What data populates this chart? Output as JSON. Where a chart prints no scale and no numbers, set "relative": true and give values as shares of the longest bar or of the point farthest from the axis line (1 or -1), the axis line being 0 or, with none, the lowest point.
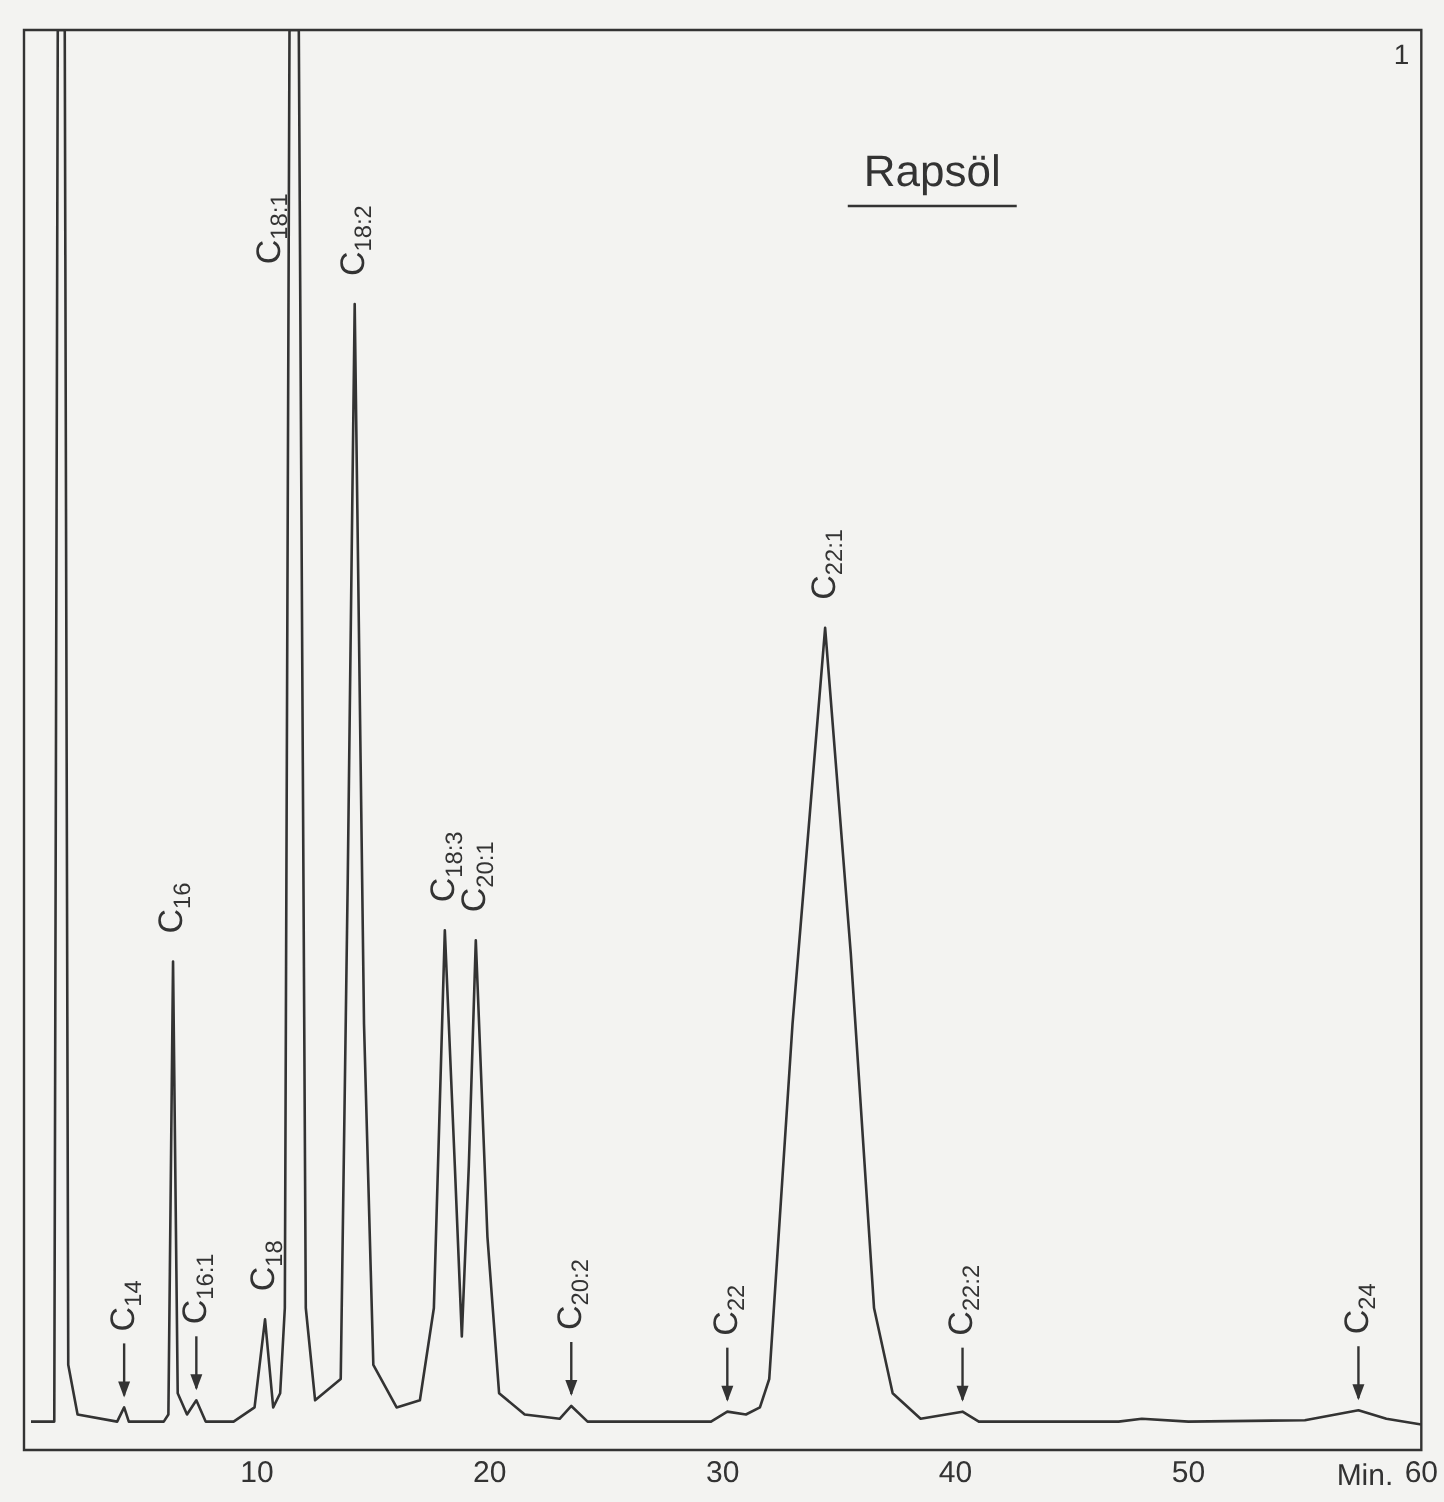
{
  "chart_data": {
    "type": "line",
    "title": "Rapsöl",
    "xlabel": "Min.",
    "relative": true,
    "xlim": [
      0,
      60
    ],
    "xticks": [
      10,
      20,
      30,
      40,
      50,
      60
    ],
    "grid": false,
    "legend": false,
    "marker": "none",
    "line_style": "solid",
    "series": [
      {
        "color": "#333333",
        "x": [
          0.3,
          1.3,
          1.45,
          1.75,
          1.9,
          2.3,
          4.0,
          4.3,
          4.5,
          6.0,
          6.2,
          6.4,
          6.6,
          7.0,
          7.4,
          7.8,
          9.0,
          9.9,
          10.35,
          10.7,
          11.0,
          11.2,
          11.4,
          11.8,
          12.1,
          12.5,
          13.6,
          13.9,
          14.2,
          14.6,
          15.0,
          16.0,
          17.0,
          17.6,
          18.07,
          18.5,
          18.8,
          19.1,
          19.4,
          19.9,
          20.4,
          21.5,
          23.0,
          23.5,
          24.2,
          29.5,
          30.2,
          31.0,
          31.6,
          32.0,
          33.0,
          34.4,
          35.5,
          36.5,
          37.3,
          38.5,
          40.3,
          41.0,
          47.0,
          48.0,
          50.0,
          55.0,
          57.3,
          58.5,
          60.0
        ],
        "values": [
          0.02,
          0.02,
          1.0,
          1.0,
          0.06,
          0.025,
          0.02,
          0.03,
          0.02,
          0.02,
          0.025,
          0.344,
          0.04,
          0.025,
          0.035,
          0.02,
          0.02,
          0.03,
          0.092,
          0.03,
          0.04,
          0.1,
          1.0,
          1.0,
          0.1,
          0.035,
          0.05,
          0.4,
          0.807,
          0.3,
          0.06,
          0.03,
          0.035,
          0.1,
          0.366,
          0.2,
          0.08,
          0.2,
          0.359,
          0.15,
          0.04,
          0.025,
          0.022,
          0.031,
          0.02,
          0.02,
          0.027,
          0.025,
          0.03,
          0.05,
          0.3,
          0.579,
          0.35,
          0.1,
          0.04,
          0.022,
          0.027,
          0.02,
          0.02,
          0.022,
          0.02,
          0.021,
          0.028,
          0.022,
          0.018
        ]
      }
    ],
    "annotations": [
      "1",
      {
        "text": "C$_{14}$",
        "x": 4.3,
        "y": 0.03
      },
      {
        "text": "C$_{16}$",
        "x": 6.4,
        "y": 0.344
      },
      {
        "text": "C$_{16:1}$",
        "x": 7.4,
        "y": 0.035
      },
      {
        "text": "C$_{18}$",
        "x": 10.35,
        "y": 0.092
      },
      {
        "text": "C$_{18:1}$",
        "x": 11.6,
        "y": 0.86
      },
      {
        "text": "C$_{18:2}$",
        "x": 14.2,
        "y": 0.807
      },
      {
        "text": "C$_{18:3}$",
        "x": 18.07,
        "y": 0.366
      },
      {
        "text": "C$_{20:1}$",
        "x": 19.4,
        "y": 0.359
      },
      {
        "text": "C$_{20:2}$",
        "x": 23.5,
        "y": 0.031
      },
      {
        "text": "C$_{22}$",
        "x": 30.2,
        "y": 0.027
      },
      {
        "text": "C$_{22:1}$",
        "x": 34.4,
        "y": 0.579
      },
      {
        "text": "C$_{22:2}$",
        "x": 40.3,
        "y": 0.027
      },
      {
        "text": "C$_{24}$",
        "x": 57.3,
        "y": 0.028
      }
    ]
  }
}
